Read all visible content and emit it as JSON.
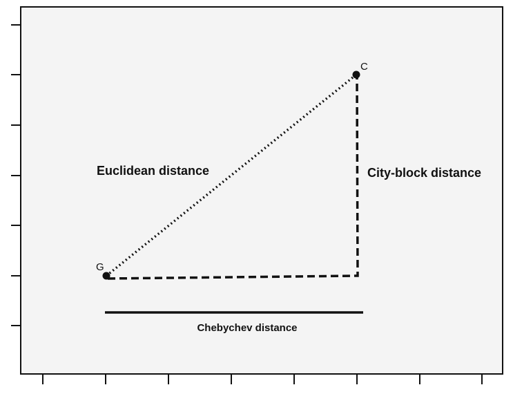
{
  "points": {
    "g": "G",
    "c": "C"
  },
  "labels": {
    "euclidean": "Euclidean distance",
    "city_block": "City-block distance",
    "chebychev": "Chebychev distance"
  },
  "colors": {
    "plot_background": "#f4f4f4",
    "ink": "#111111"
  }
}
